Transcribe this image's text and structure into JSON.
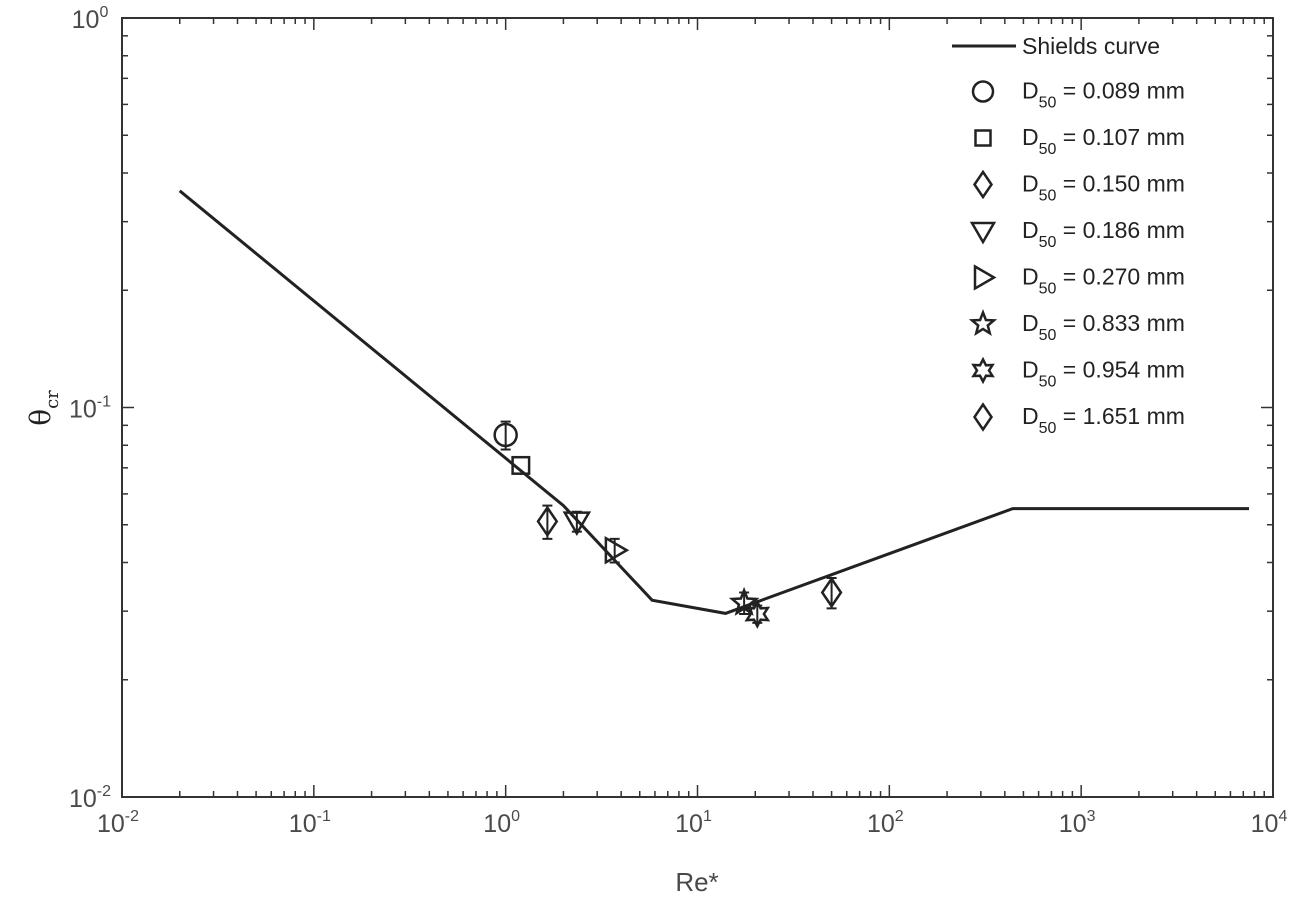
{
  "chart_data": {
    "type": "scatter",
    "x_scale": "log",
    "y_scale": "log",
    "xlim": [
      0.01,
      10000
    ],
    "ylim": [
      0.01,
      1
    ],
    "xlabel": "Re*",
    "ylabel": {
      "base": "θ",
      "sub": "cr"
    },
    "x_ticks": [
      {
        "value": 0.01,
        "base": "10",
        "exp": "-2"
      },
      {
        "value": 0.1,
        "base": "10",
        "exp": "-1"
      },
      {
        "value": 1,
        "base": "10",
        "exp": "0"
      },
      {
        "value": 10,
        "base": "10",
        "exp": "1"
      },
      {
        "value": 100,
        "base": "10",
        "exp": "2"
      },
      {
        "value": 1000,
        "base": "10",
        "exp": "3"
      },
      {
        "value": 10000,
        "base": "10",
        "exp": "4"
      }
    ],
    "y_ticks": [
      {
        "value": 0.01,
        "base": "10",
        "exp": "-2"
      },
      {
        "value": 0.1,
        "base": "10",
        "exp": "-1"
      },
      {
        "value": 1,
        "base": "10",
        "exp": "0"
      }
    ],
    "grid": false,
    "legend_position": "top-right",
    "line_series": {
      "name": "Shields curve",
      "x": [
        0.02,
        2.0,
        5.8,
        14.0,
        440,
        7500
      ],
      "y": [
        0.36,
        0.056,
        0.032,
        0.0296,
        0.055,
        0.055
      ]
    },
    "series": [
      {
        "name": "0.089 mm",
        "marker": "circle",
        "x": [
          1.0
        ],
        "y": [
          0.085
        ],
        "err": [
          0.007
        ]
      },
      {
        "name": "0.107 mm",
        "marker": "square",
        "x": [
          1.2
        ],
        "y": [
          0.071
        ],
        "err": [
          0.0
        ]
      },
      {
        "name": "0.150 mm",
        "marker": "diamond",
        "x": [
          1.65
        ],
        "y": [
          0.051
        ],
        "err": [
          0.005
        ]
      },
      {
        "name": "0.186 mm",
        "marker": "triangle-down",
        "x": [
          2.35
        ],
        "y": [
          0.051
        ],
        "err": [
          0.003
        ]
      },
      {
        "name": "0.270 mm",
        "marker": "triangle-right",
        "x": [
          3.7
        ],
        "y": [
          0.043
        ],
        "err": [
          0.003
        ]
      },
      {
        "name": "0.833 mm",
        "marker": "star5",
        "x": [
          17.5
        ],
        "y": [
          0.0315
        ],
        "err": [
          0.002
        ]
      },
      {
        "name": "0.954 mm",
        "marker": "star6",
        "x": [
          20.5
        ],
        "y": [
          0.0295
        ],
        "err": [
          0.0015
        ]
      },
      {
        "name": "1.651 mm",
        "marker": "diamond",
        "x": [
          50
        ],
        "y": [
          0.0335
        ],
        "err": [
          0.003
        ]
      }
    ],
    "legend_prefix": {
      "base": "D",
      "sub": "50",
      "eq": " = "
    }
  }
}
